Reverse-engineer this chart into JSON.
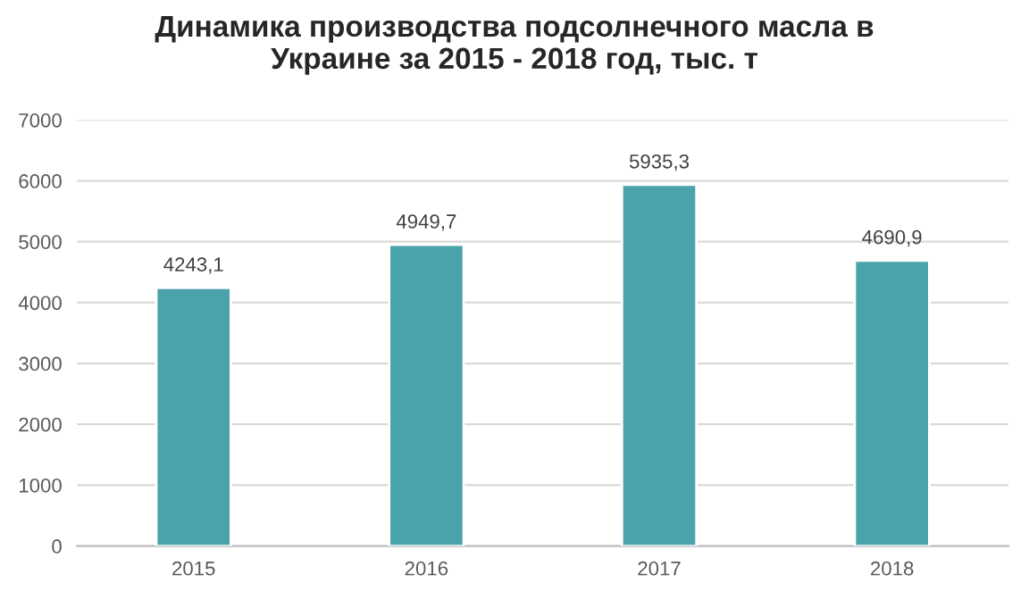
{
  "chart_data": {
    "type": "bar",
    "title": "Динамика производства подсолнечного масла в\nУкраине за 2015 - 2018 год, тыс. т",
    "categories": [
      "2015",
      "2016",
      "2017",
      "2018"
    ],
    "values": [
      4243.1,
      4949.7,
      5935.3,
      4690.9
    ],
    "value_labels": [
      "4243,1",
      "4949,7",
      "5935,3",
      "4690,9"
    ],
    "color": "#4aa2ab",
    "ylim": [
      0,
      7000
    ],
    "yticks": [
      0,
      1000,
      2000,
      3000,
      4000,
      5000,
      6000,
      7000
    ],
    "grid": "y"
  }
}
